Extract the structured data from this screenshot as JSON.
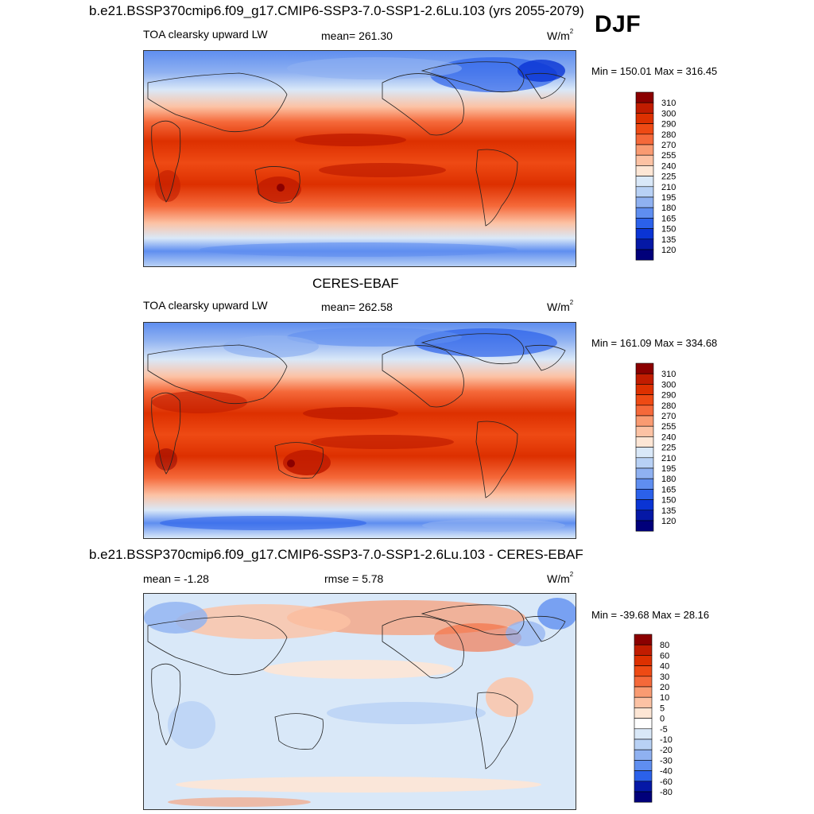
{
  "season": "DJF",
  "panels": [
    {
      "id": "model",
      "title": "b.e21.BSSP370cmip6.f09_g17.CMIP6-SSP3-7.0-SSP1-2.6Lu.103 (yrs 2055-2079)",
      "left_label": "TOA clearsky upward LW",
      "center_label": "mean= 261.30",
      "units": "W/m",
      "units_sup": "2",
      "minmax": "Min = 150.01 Max = 316.45",
      "colorbar": {
        "labels": [
          "310",
          "300",
          "290",
          "280",
          "270",
          "255",
          "240",
          "225",
          "210",
          "195",
          "180",
          "165",
          "150",
          "135",
          "120"
        ],
        "colors": [
          "#8b0000",
          "#c11c00",
          "#dd3000",
          "#ee4a14",
          "#f5693a",
          "#f99b72",
          "#fcc2a4",
          "#fde6d5",
          "#d9e8f8",
          "#b8d1f5",
          "#8fb1f1",
          "#5f8ef0",
          "#2b61ea",
          "#0a34d4",
          "#0518a6",
          "#01007a"
        ]
      }
    },
    {
      "id": "obs",
      "title": "CERES-EBAF",
      "left_label": "TOA clearsky upward LW",
      "center_label": "mean= 262.58",
      "units": "W/m",
      "units_sup": "2",
      "minmax": "Min = 161.09 Max = 334.68",
      "colorbar": {
        "labels": [
          "310",
          "300",
          "290",
          "280",
          "270",
          "255",
          "240",
          "225",
          "210",
          "195",
          "180",
          "165",
          "150",
          "135",
          "120"
        ],
        "colors": [
          "#8b0000",
          "#c11c00",
          "#dd3000",
          "#ee4a14",
          "#f5693a",
          "#f99b72",
          "#fcc2a4",
          "#fde6d5",
          "#d9e8f8",
          "#b8d1f5",
          "#8fb1f1",
          "#5f8ef0",
          "#2b61ea",
          "#0a34d4",
          "#0518a6",
          "#01007a"
        ]
      }
    },
    {
      "id": "diff",
      "title": "b.e21.BSSP370cmip6.f09_g17.CMIP6-SSP3-7.0-SSP1-2.6Lu.103 - CERES-EBAF",
      "left_label": "mean =  -1.28",
      "center_label": "rmse =   5.78",
      "units": "W/m",
      "units_sup": "2",
      "minmax": "Min = -39.68 Max =  28.16",
      "colorbar": {
        "labels": [
          "80",
          "60",
          "40",
          "30",
          "20",
          "10",
          "5",
          "0",
          "-5",
          "-10",
          "-20",
          "-30",
          "-40",
          "-60",
          "-80"
        ],
        "colors": [
          "#8b0000",
          "#c11c00",
          "#dd3000",
          "#ee4a14",
          "#f5693a",
          "#f99b72",
          "#fcc2a4",
          "#fde6d5",
          "#ffffff",
          "#d9e8f8",
          "#b8d1f5",
          "#8fb1f1",
          "#5f8ef0",
          "#2b61ea",
          "#0518a6",
          "#01007a"
        ]
      }
    }
  ]
}
